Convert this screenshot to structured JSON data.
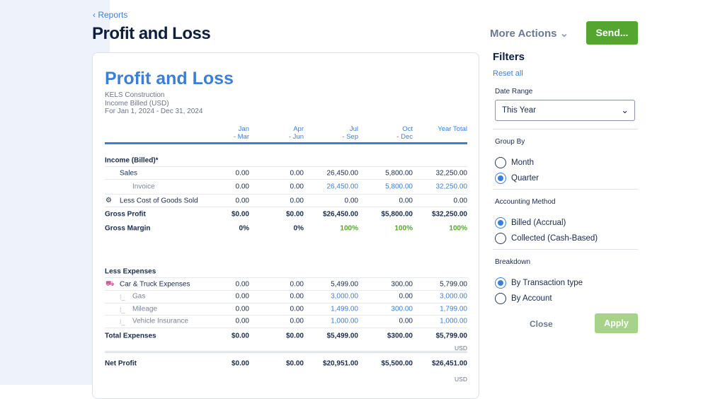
{
  "header": {
    "back_label": "Reports",
    "title": "Profit and Loss",
    "more_actions": "More Actions",
    "send": "Send..."
  },
  "report": {
    "title": "Profit and Loss",
    "company": "KELS Construction",
    "basis": "Income Billed (USD)",
    "period": "For Jan 1, 2024 - Dec 31, 2024",
    "columns": [
      [
        "Jan",
        "- Mar"
      ],
      [
        "Apr",
        "- Jun"
      ],
      [
        "Jul",
        "- Sep"
      ],
      [
        "Oct",
        "- Dec"
      ],
      [
        "Year Total",
        ""
      ]
    ],
    "rows": [
      {
        "type": "sec",
        "label": "Income (Billed)*",
        "values": []
      },
      {
        "type": "sub",
        "label": "Sales",
        "values": [
          "0.00",
          "0.00",
          "26,450.00",
          "5,800.00",
          "32,250.00"
        ]
      },
      {
        "type": "sub2",
        "label": "Invoice",
        "values": [
          "0.00",
          "0.00",
          "26,450.00",
          "5,800.00",
          "32,250.00"
        ],
        "link": true
      },
      {
        "type": "icon",
        "icon": "cogs-icon",
        "label": "Less Cost of Goods Sold",
        "values": [
          "0.00",
          "0.00",
          "0.00",
          "0.00",
          "0.00"
        ]
      },
      {
        "type": "bold",
        "label": "Gross Profit",
        "values": [
          "$0.00",
          "$0.00",
          "$26,450.00",
          "$5,800.00",
          "$32,250.00"
        ]
      },
      {
        "type": "bold",
        "label": "Gross Margin",
        "values": [
          "0%",
          "0%",
          "100%",
          "100%",
          "100%"
        ],
        "green_from": 2
      },
      {
        "type": "spacer"
      },
      {
        "type": "sec",
        "label": "Less Expenses",
        "values": []
      },
      {
        "type": "icon",
        "icon": "truck-icon",
        "label": "Car & Truck Expenses",
        "values": [
          "0.00",
          "0.00",
          "5,499.00",
          "300.00",
          "5,799.00"
        ]
      },
      {
        "type": "sub3",
        "label": "Gas",
        "values": [
          "0.00",
          "0.00",
          "3,000.00",
          "0.00",
          "3,000.00"
        ],
        "link": true
      },
      {
        "type": "sub3",
        "label": "Mileage",
        "values": [
          "0.00",
          "0.00",
          "1,499.00",
          "300.00",
          "1,799.00"
        ],
        "link": true
      },
      {
        "type": "sub3",
        "label": "Vehicle Insurance",
        "values": [
          "0.00",
          "0.00",
          "1,000.00",
          "0.00",
          "1,000.00"
        ],
        "link": true
      },
      {
        "type": "bold",
        "label": "Total Expenses",
        "values": [
          "$0.00",
          "$0.00",
          "$5,499.00",
          "$300.00",
          "$5,799.00"
        ],
        "usd": "USD"
      },
      {
        "type": "net",
        "label": "Net Profit",
        "values": [
          "$0.00",
          "$0.00",
          "$20,951.00",
          "$5,500.00",
          "$26,451.00"
        ],
        "usd": "USD"
      }
    ]
  },
  "filters": {
    "title": "Filters",
    "reset": "Reset all",
    "date_range_label": "Date Range",
    "date_range_value": "This Year",
    "group_by_label": "Group By",
    "group_by": [
      {
        "label": "Month",
        "checked": false
      },
      {
        "label": "Quarter",
        "checked": true
      }
    ],
    "method_label": "Accounting Method",
    "method": [
      {
        "label": "Billed (Accrual)",
        "checked": true
      },
      {
        "label": "Collected (Cash-Based)",
        "checked": false
      }
    ],
    "breakdown_label": "Breakdown",
    "breakdown": [
      {
        "label": "By Transaction type",
        "checked": true
      },
      {
        "label": "By Account",
        "checked": false
      }
    ],
    "close": "Close",
    "apply": "Apply"
  },
  "colors": {
    "accent": "#3d7fd6",
    "send": "#55a630",
    "apply": "#a6d28a",
    "positive": "#55a630"
  }
}
